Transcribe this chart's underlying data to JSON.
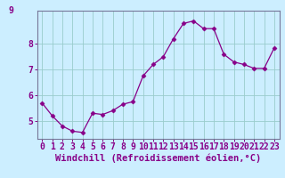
{
  "x": [
    0,
    1,
    2,
    3,
    4,
    5,
    6,
    7,
    8,
    9,
    10,
    11,
    12,
    13,
    14,
    15,
    16,
    17,
    18,
    19,
    20,
    21,
    22,
    23
  ],
  "y": [
    5.7,
    5.2,
    4.8,
    4.6,
    4.55,
    5.3,
    5.25,
    5.4,
    5.65,
    5.75,
    6.75,
    7.2,
    7.5,
    8.2,
    8.8,
    8.9,
    8.6,
    8.6,
    7.6,
    7.3,
    7.2,
    7.05,
    7.05,
    7.85
  ],
  "line_color": "#880088",
  "marker": "D",
  "marker_size": 2.5,
  "bg_color": "#cceeff",
  "grid_color": "#99cccc",
  "xlabel": "Windchill (Refroidissement éolien,°C)",
  "xlim": [
    -0.5,
    23.5
  ],
  "ylim": [
    4.3,
    9.3
  ],
  "yticks": [
    5,
    6,
    7,
    8
  ],
  "xticks": [
    0,
    1,
    2,
    3,
    4,
    5,
    6,
    7,
    8,
    9,
    10,
    11,
    12,
    13,
    14,
    15,
    16,
    17,
    18,
    19,
    20,
    21,
    22,
    23
  ],
  "xlabel_fontsize": 7.5,
  "tick_fontsize": 7,
  "axis_color": "#880088",
  "spine_color": "#777799"
}
